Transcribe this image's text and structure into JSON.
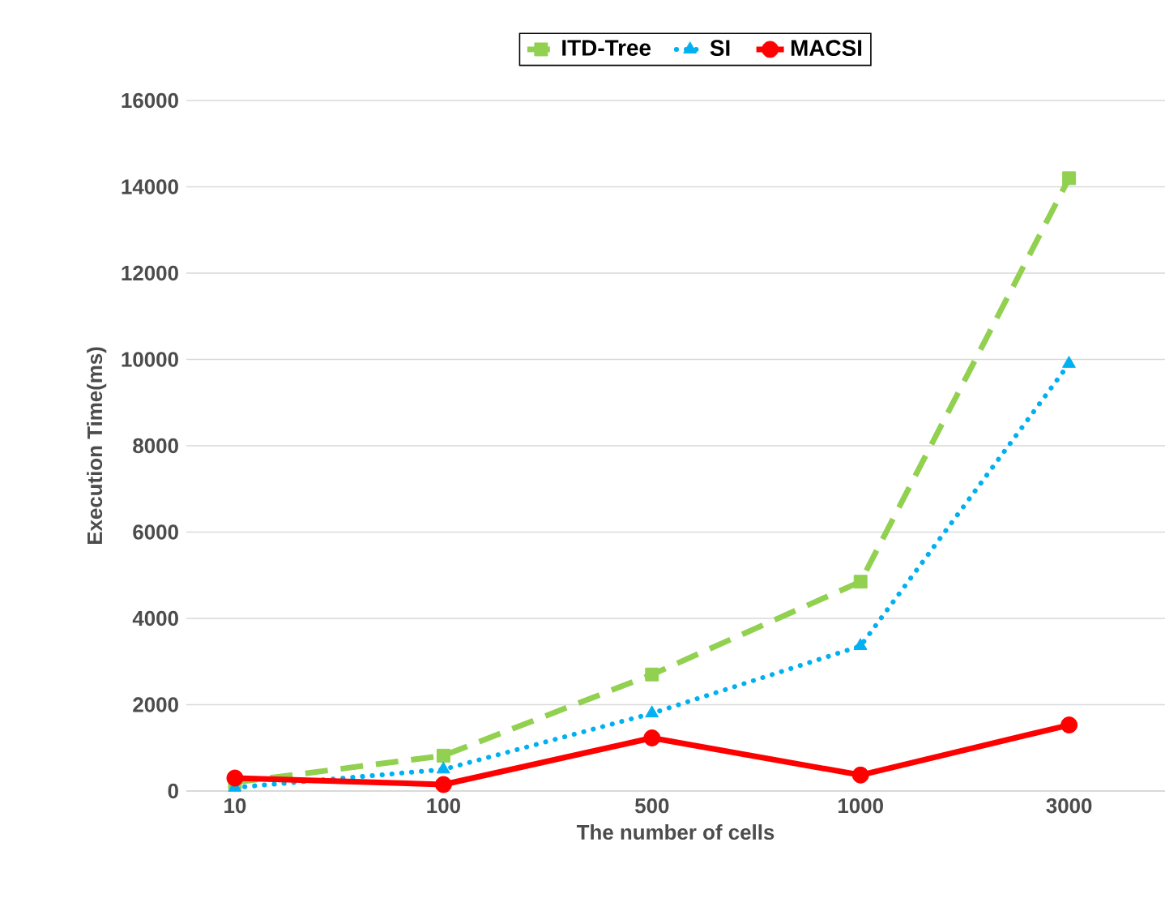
{
  "chart_data": {
    "type": "line",
    "xlabel": "The number of cells",
    "ylabel": "Execution Time(ms)",
    "categories": [
      "10",
      "100",
      "500",
      "1000",
      "3000"
    ],
    "series": [
      {
        "name": "ITD-Tree",
        "color": "#92d050",
        "values": [
          200,
          820,
          2700,
          4850,
          14200
        ],
        "marker": "square",
        "line_style": "dashed"
      },
      {
        "name": "SI",
        "color": "#00b0f0",
        "values": [
          80,
          500,
          1800,
          3360,
          9900
        ],
        "marker": "triangle",
        "line_style": "dotted"
      },
      {
        "name": "MACSI",
        "color": "#ff0000",
        "values": [
          300,
          150,
          1230,
          370,
          1530
        ],
        "marker": "circle",
        "line_style": "solid"
      }
    ],
    "ylim": [
      0,
      16000
    ],
    "yticks": [
      0,
      2000,
      4000,
      6000,
      8000,
      10000,
      12000,
      14000,
      16000
    ],
    "grid": "y",
    "legend": "top"
  }
}
